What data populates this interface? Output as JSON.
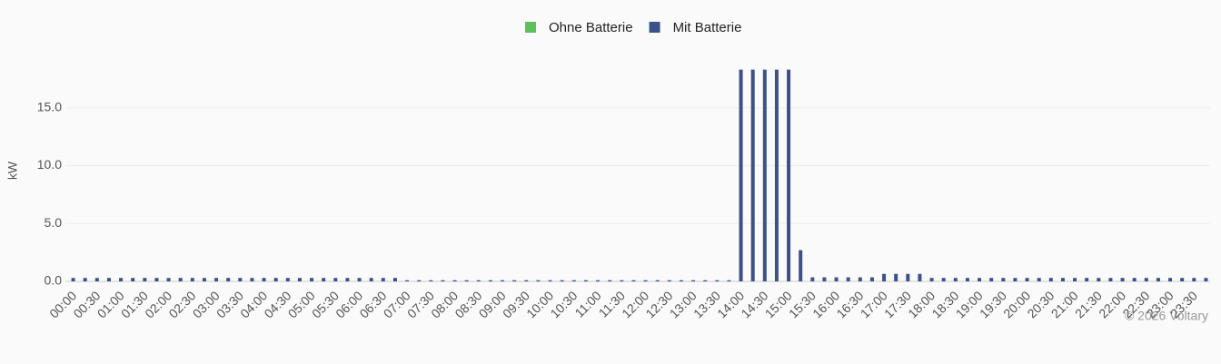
{
  "chart_data": {
    "type": "bar",
    "y_label": "kW",
    "watermark": "© 2026 Voltary",
    "categories": [
      "00:00",
      null,
      "00:30",
      null,
      "01:00",
      null,
      "01:30",
      null,
      "02:00",
      null,
      "02:30",
      null,
      "03:00",
      null,
      "03:30",
      null,
      "04:00",
      null,
      "04:30",
      null,
      "05:00",
      null,
      "05:30",
      null,
      "06:00",
      null,
      "06:30",
      null,
      "07:00",
      null,
      "07:30",
      null,
      "08:00",
      null,
      "08:30",
      null,
      "09:00",
      null,
      "09:30",
      null,
      "10:00",
      null,
      "10:30",
      null,
      "11:00",
      null,
      "11:30",
      null,
      "12:00",
      null,
      "12:30",
      null,
      "13:00",
      null,
      "13:30",
      null,
      "14:00",
      null,
      "14:30",
      null,
      "15:00",
      null,
      "15:30",
      null,
      "16:00",
      null,
      "16:30",
      null,
      "17:00",
      null,
      "17:30",
      null,
      "18:00",
      null,
      "18:30",
      null,
      "19:00",
      null,
      "19:30",
      null,
      "20:00",
      null,
      "20:30",
      null,
      "21:00",
      null,
      "21:30",
      null,
      "22:00",
      null,
      "22:30",
      null,
      "23:00",
      null,
      "23:30",
      null
    ],
    "series": [
      {
        "name": "Ohne Batterie",
        "color": "#5cc15c",
        "values": [
          0,
          0,
          0,
          0,
          0,
          0,
          0,
          0,
          0,
          0,
          0,
          0,
          0,
          0,
          0,
          0,
          0,
          0,
          0,
          0,
          0,
          0,
          0,
          0,
          0,
          0,
          0,
          0,
          0,
          0,
          0,
          0,
          0,
          0,
          0,
          0,
          0,
          0,
          0,
          0,
          0,
          0,
          0,
          0,
          0,
          0,
          0,
          0,
          0,
          0,
          0,
          0,
          0,
          0,
          0,
          0,
          0,
          0,
          0,
          0,
          0,
          0,
          0,
          0,
          0,
          0,
          0,
          0,
          0,
          0,
          0,
          0,
          0,
          0,
          0,
          0,
          0,
          0,
          0,
          0,
          0,
          0,
          0,
          0,
          0,
          0,
          0,
          0,
          0,
          0,
          0,
          0,
          0,
          0,
          0,
          0
        ]
      },
      {
        "name": "Mit Batterie",
        "color": "#3b5189",
        "values": [
          0.3,
          0.3,
          0.3,
          0.3,
          0.3,
          0.3,
          0.3,
          0.3,
          0.3,
          0.3,
          0.3,
          0.3,
          0.3,
          0.3,
          0.3,
          0.3,
          0.3,
          0.3,
          0.3,
          0.3,
          0.3,
          0.3,
          0.3,
          0.3,
          0.3,
          0.3,
          0.3,
          0.3,
          0.1,
          0.1,
          0.1,
          0.1,
          0.1,
          0.1,
          0.1,
          0.1,
          0.1,
          0.1,
          0.1,
          0.1,
          0.1,
          0.1,
          0.1,
          0.1,
          0.1,
          0.1,
          0.1,
          0.1,
          0.1,
          0.1,
          0.1,
          0.1,
          0.1,
          0.1,
          0.1,
          0.1,
          18.3,
          18.3,
          18.3,
          18.3,
          18.3,
          2.7,
          0.35,
          0.35,
          0.35,
          0.35,
          0.35,
          0.35,
          0.65,
          0.65,
          0.65,
          0.65,
          0.3,
          0.3,
          0.3,
          0.3,
          0.3,
          0.3,
          0.3,
          0.3,
          0.3,
          0.3,
          0.3,
          0.3,
          0.3,
          0.3,
          0.3,
          0.3,
          0.3,
          0.3,
          0.3,
          0.3,
          0.3,
          0.3,
          0.3,
          0.3
        ]
      }
    ],
    "ylim": [
      0,
      20
    ],
    "yticks": [
      {
        "value": 0,
        "label": "0.0"
      },
      {
        "value": 5,
        "label": "5.0"
      },
      {
        "value": 10,
        "label": "10.0"
      },
      {
        "value": 15,
        "label": "15.0"
      }
    ],
    "grid": true
  }
}
